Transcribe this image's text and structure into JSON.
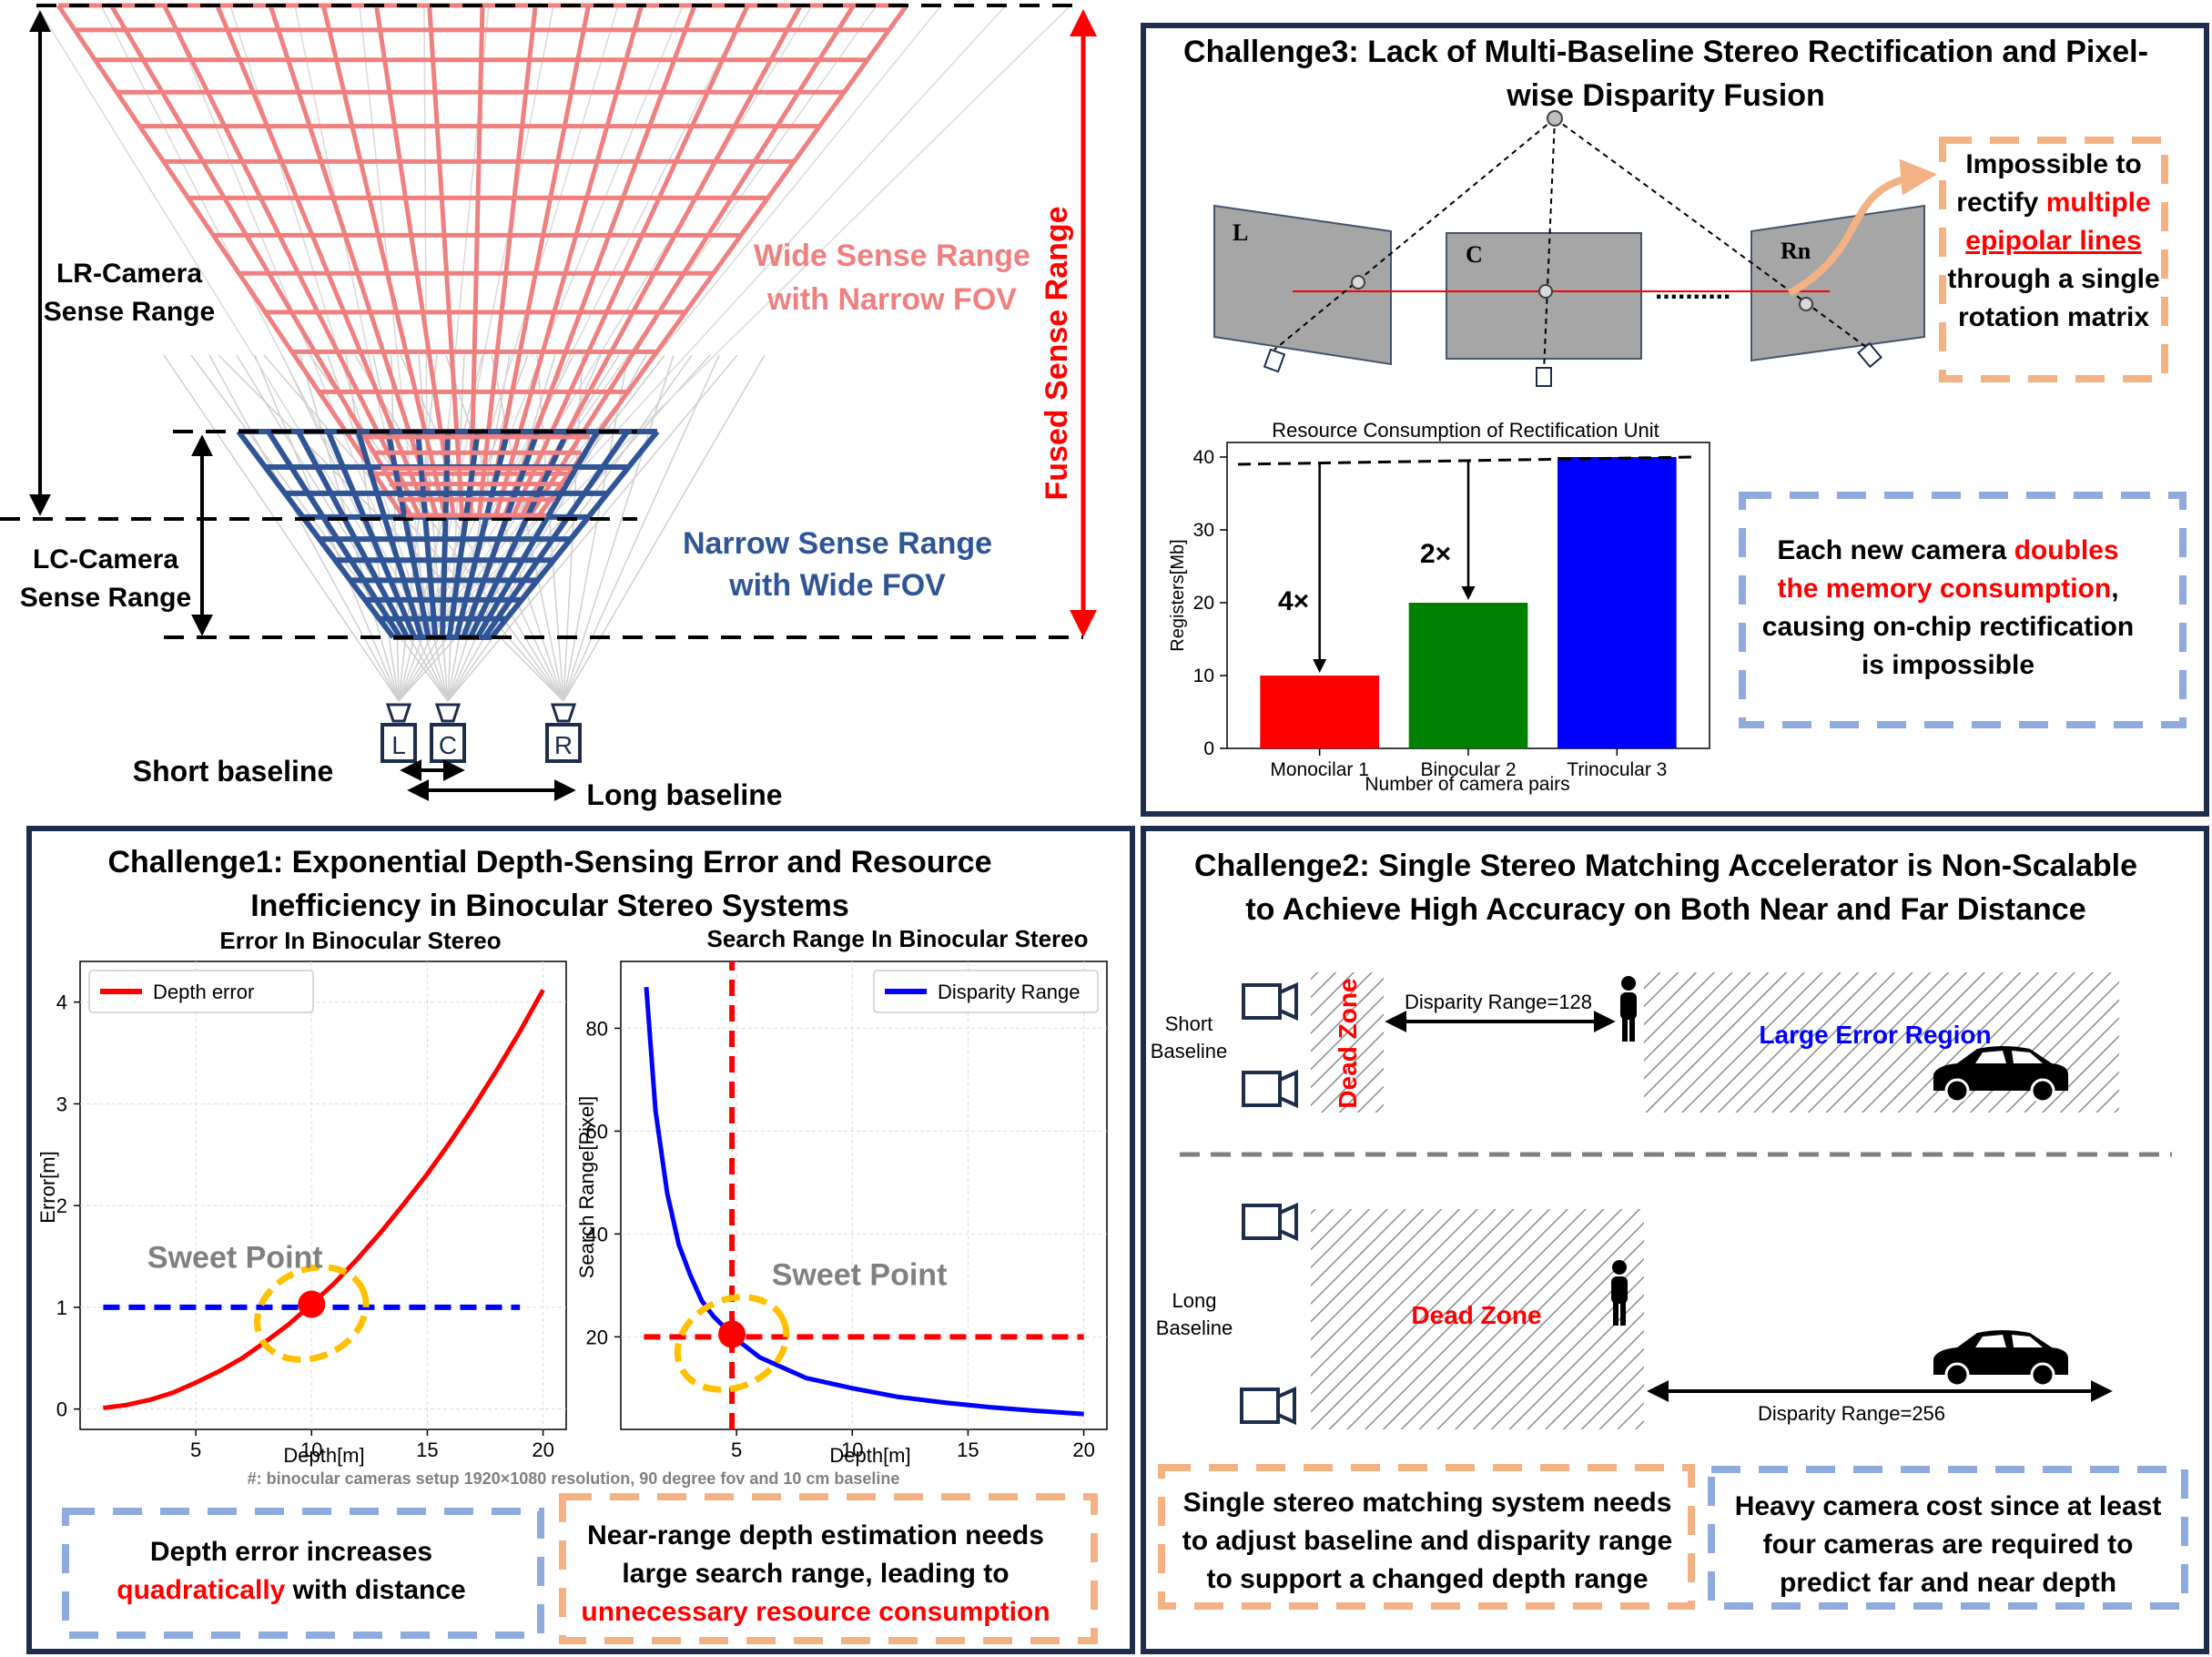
{
  "colors": {
    "navy": "#1f2d4d",
    "pink": "#f08080",
    "blue_grid": "#2f5597",
    "red": "#ff0000",
    "orange_box": "#f4b183",
    "blue_box": "#8faadc",
    "grey": "#808080",
    "gold": "#ffc000",
    "green": "#008000",
    "blue": "#0000ff"
  },
  "top_left": {
    "lr_label": [
      "LR-Camera",
      "Sense Range"
    ],
    "lc_label": [
      "LC-Camera",
      "Sense Range"
    ],
    "wide_label": [
      "Wide Sense Range",
      "with Narrow FOV"
    ],
    "narrow_label": [
      "Narrow Sense Range",
      "with Wide FOV"
    ],
    "fused_label": "Fused Sense Range",
    "cams": [
      "L",
      "C",
      "R"
    ],
    "short_baseline": "Short baseline",
    "long_baseline": "Long baseline"
  },
  "challenge3": {
    "title": [
      "Challenge3: Lack of Multi-Baseline Stereo Rectification and Pixel-",
      "wise Disparity Fusion"
    ],
    "planes": [
      "L",
      "C",
      "Rn"
    ],
    "dots": "..........",
    "impossible_text": {
      "line1": "Impossible to",
      "line2_pre": "rectify ",
      "line2_red": "multiple",
      "line3_red": "epipolar lines",
      "line4": "through a single",
      "line5": "rotation matrix"
    },
    "memory_text": {
      "line1_pre": "Each new camera ",
      "line1_red": "doubles",
      "line2_red": "the memory consumption",
      "line2_post": ",",
      "line3": "causing on-chip rectification",
      "line4": "is impossible"
    }
  },
  "challenge1": {
    "title": [
      "Challenge1: Exponential Depth-Sensing Error and Resource",
      "Inefficiency in Binocular Stereo Systems"
    ],
    "footnote": "#: binocular cameras setup 1920×1080 resolution, 90 degree fov and 10 cm baseline",
    "box_blue": {
      "line1": "Depth error increases",
      "line2_red": "quadratically",
      "line2_post": " with distance"
    },
    "box_orange": {
      "line1": "Near-range depth estimation needs",
      "line2": "large search range, leading to",
      "line3_red": "unnecessary resource consumption"
    },
    "sweet_point": "Sweet Point"
  },
  "challenge2": {
    "title": [
      "Challenge2: Single Stereo Matching Accelerator is Non-Scalable",
      "to Achieve High Accuracy on Both Near and Far Distance"
    ],
    "short_baseline": [
      "Short",
      "Baseline"
    ],
    "long_baseline": [
      "Long",
      "Baseline"
    ],
    "dead_zone": "Dead Zone",
    "disparity_128": "Disparity Range=128",
    "disparity_256": "Disparity Range=256",
    "large_error": "Large Error Region",
    "box_orange": [
      "Single stereo matching system needs",
      "to adjust baseline and disparity range",
      "to support a changed depth range"
    ],
    "box_blue": [
      "Heavy camera cost since at least",
      "four cameras are required to",
      "predict far and near depth"
    ]
  },
  "chart_data": [
    {
      "type": "bar",
      "title": "Resource Consumption of Rectification Unit",
      "xlabel": "Number of camera pairs",
      "ylabel": "Registers[Mb]",
      "categories": [
        "Monocilar 1",
        "Binocular 2",
        "Trinocular 3"
      ],
      "values": [
        10,
        20,
        40
      ],
      "bar_colors": [
        "#ff0000",
        "#008000",
        "#0000ff"
      ],
      "ylim": [
        0,
        42
      ],
      "yticks": [
        0,
        10,
        20,
        30,
        40
      ],
      "annotations": [
        "4×",
        "2×"
      ]
    },
    {
      "type": "line",
      "title": "Error In Binocular Stereo",
      "xlabel": "Depth[m]",
      "ylabel": "Error[m]",
      "xlim": [
        0.0,
        21.0
      ],
      "ylim": [
        -0.2,
        4.4
      ],
      "xticks": [
        5,
        10,
        15,
        20
      ],
      "yticks": [
        0,
        1,
        2,
        3,
        4
      ],
      "legend": "top-left",
      "series": [
        {
          "name": "Depth error",
          "color": "#ff0000",
          "x": [
            1,
            2,
            3,
            4,
            5,
            6,
            7,
            8,
            9,
            10,
            11,
            12,
            13,
            14,
            15,
            16,
            17,
            18,
            19,
            20
          ],
          "values": [
            0.01,
            0.04,
            0.09,
            0.16,
            0.26,
            0.37,
            0.5,
            0.66,
            0.83,
            1.03,
            1.24,
            1.48,
            1.74,
            2.02,
            2.31,
            2.63,
            2.97,
            3.33,
            3.71,
            4.12
          ]
        }
      ],
      "reference_lines": [
        {
          "axis": "y",
          "value": 1.0,
          "from": 1,
          "to": 19,
          "color": "#0000ff"
        }
      ],
      "highlight_point": {
        "x": 10,
        "y": 1.03
      },
      "grid": true
    },
    {
      "type": "line",
      "title": "Search Range In Binocular Stereo",
      "xlabel": "Depth[m]",
      "ylabel": "Search Range[Pixel]",
      "xlim": [
        0.0,
        21.0
      ],
      "ylim": [
        2,
        93
      ],
      "xticks": [
        5,
        10,
        15,
        20
      ],
      "yticks": [
        20,
        40,
        60,
        80
      ],
      "legend": "top-right",
      "series": [
        {
          "name": "Disparity Range",
          "color": "#0000ff",
          "x": [
            1.1,
            1.5,
            2,
            2.5,
            3,
            3.5,
            4,
            5,
            6,
            7,
            8,
            10,
            12,
            14,
            16,
            18,
            20
          ],
          "values": [
            88,
            64,
            48,
            38,
            32,
            27,
            24,
            19.5,
            16,
            14,
            12,
            10,
            8.3,
            7.2,
            6.3,
            5.6,
            5
          ]
        }
      ],
      "reference_lines": [
        {
          "axis": "y",
          "value": 20,
          "from": 1,
          "to": 20,
          "color": "#ff0000"
        },
        {
          "axis": "x",
          "value": 4.8,
          "from": 2,
          "to": 93,
          "color": "#ff0000"
        }
      ],
      "highlight_point": {
        "x": 4.8,
        "y": 20.5
      },
      "grid": true
    }
  ]
}
